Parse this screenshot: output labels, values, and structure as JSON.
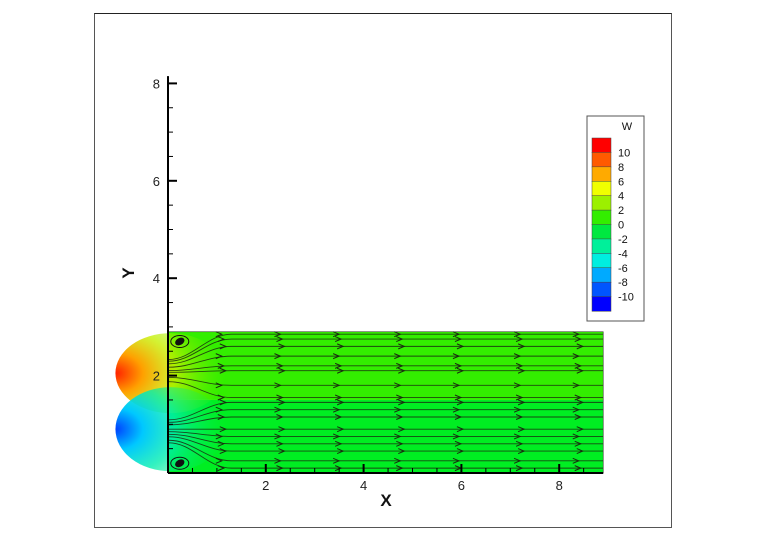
{
  "chart_data": {
    "type": "heatmap",
    "subtype": "contour-with-streamlines",
    "title": "",
    "xlabel": "X",
    "ylabel": "Y",
    "xlim": [
      0,
      9
    ],
    "ylim": [
      0,
      8
    ],
    "x_ticks": [
      2,
      4,
      6,
      8
    ],
    "y_ticks": [
      2,
      4,
      6,
      8
    ],
    "x_tick_labels": [
      "2",
      "4",
      "6",
      "8"
    ],
    "y_tick_labels": [
      "2",
      "4",
      "6",
      "8"
    ],
    "domain": {
      "x": [
        0,
        8.9
      ],
      "y": [
        0,
        2.9
      ]
    },
    "colorbar": {
      "title": "W",
      "levels": [
        10,
        8,
        6,
        4,
        2,
        0,
        -2,
        -4,
        -6,
        -8,
        -10
      ],
      "labels": [
        "10",
        "8",
        "6",
        "4",
        "2",
        "0",
        "-2",
        "-4",
        "-6",
        "-8",
        "-10"
      ],
      "colors": [
        "#ff0000",
        "#ff5a00",
        "#ffaa00",
        "#f0ff00",
        "#9cf000",
        "#33ee00",
        "#00e840",
        "#00f09a",
        "#00eee0",
        "#00aaff",
        "#0055ff",
        "#0000ff"
      ]
    },
    "features": [
      {
        "type": "vortex",
        "x": 0.2,
        "y": 2.7
      },
      {
        "type": "vortex",
        "x": 0.2,
        "y": 0.2
      },
      {
        "type": "hotspot",
        "value": 8,
        "x": 0.05,
        "y": 2.05
      },
      {
        "type": "coldspot",
        "value": -8,
        "x": 0.05,
        "y": 0.9
      }
    ],
    "streamline_y": [
      2.85,
      2.75,
      2.6,
      2.4,
      2.2,
      2.1,
      1.8,
      1.55,
      1.45,
      1.3,
      1.15,
      0.9,
      0.75,
      0.6,
      0.45,
      0.25,
      0.1
    ],
    "arrow_x": [
      1.1,
      2.3,
      3.5,
      4.75,
      5.95,
      7.2,
      8.4
    ],
    "grid": false,
    "legend_position": "upper right"
  }
}
